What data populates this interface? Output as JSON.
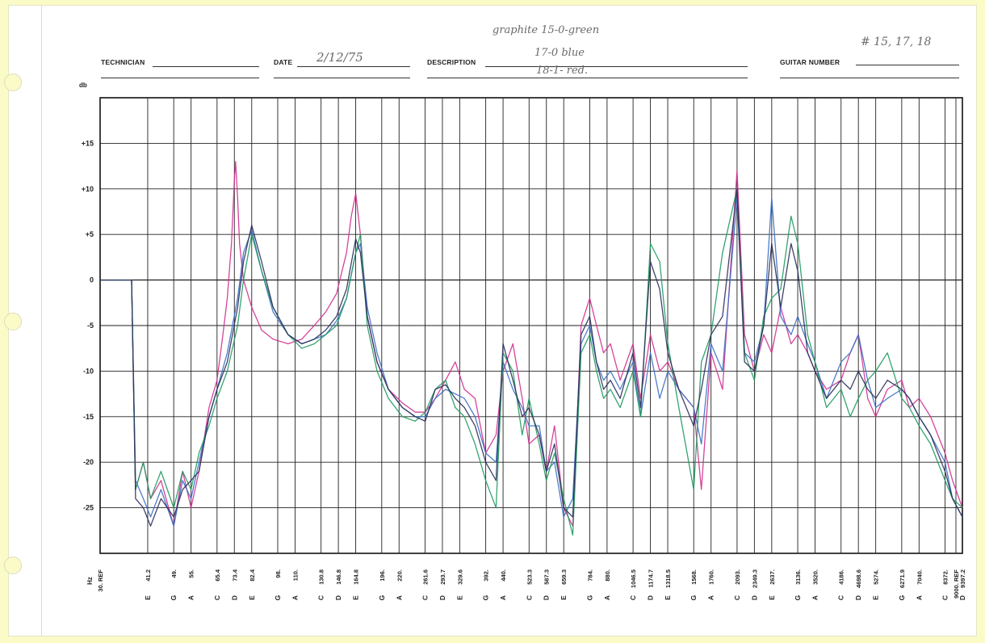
{
  "form": {
    "technician_label": "TECHNICIAN",
    "date_label": "DATE",
    "date_value": "2/12/75",
    "description_label": "DESCRIPTION",
    "description_lines": [
      "graphite 15-0-green",
      "17-0 blue",
      "18-1- red."
    ],
    "guitar_number_label": "GUITAR NUMBER",
    "guitar_number_value": "# 15, 17, 18"
  },
  "chart_data": {
    "type": "line",
    "ylabel": "db",
    "xlabel": "Hz",
    "ylim": [
      -30,
      20
    ],
    "yticks": [
      15,
      10,
      5,
      0,
      -5,
      -10,
      -15,
      -20,
      -25
    ],
    "ytick_labels": [
      "+15",
      "+10",
      "+5",
      "0",
      "-5",
      "-10",
      "-15",
      "-20",
      "-25"
    ],
    "x_scale": "log",
    "x_range_hz": [
      30,
      9397.2
    ],
    "x_ticks": [
      {
        "hz": 30,
        "freq": "30. REF",
        "note": ""
      },
      {
        "hz": 41.2,
        "freq": "41.2",
        "note": "E"
      },
      {
        "hz": 49,
        "freq": "49.",
        "note": "G"
      },
      {
        "hz": 55,
        "freq": "55.",
        "note": "A"
      },
      {
        "hz": 65.4,
        "freq": "65.4",
        "note": "C"
      },
      {
        "hz": 73.4,
        "freq": "73.4",
        "note": "D"
      },
      {
        "hz": 82.4,
        "freq": "82.4",
        "note": "E"
      },
      {
        "hz": 98,
        "freq": "98.",
        "note": "G"
      },
      {
        "hz": 110,
        "freq": "110.",
        "note": "A"
      },
      {
        "hz": 130.8,
        "freq": "130.8",
        "note": "C"
      },
      {
        "hz": 146.8,
        "freq": "146.8",
        "note": "D"
      },
      {
        "hz": 164.8,
        "freq": "164.8",
        "note": "E"
      },
      {
        "hz": 196,
        "freq": "196.",
        "note": "G"
      },
      {
        "hz": 220,
        "freq": "220.",
        "note": "A"
      },
      {
        "hz": 261.6,
        "freq": "261.6",
        "note": "C"
      },
      {
        "hz": 293.7,
        "freq": "293.7",
        "note": "D"
      },
      {
        "hz": 329.6,
        "freq": "329.6",
        "note": "E"
      },
      {
        "hz": 392,
        "freq": "392.",
        "note": "G"
      },
      {
        "hz": 440,
        "freq": "440.",
        "note": "A"
      },
      {
        "hz": 523.3,
        "freq": "523.3",
        "note": "C"
      },
      {
        "hz": 587.3,
        "freq": "587.3",
        "note": "D"
      },
      {
        "hz": 659.3,
        "freq": "659.3",
        "note": "E"
      },
      {
        "hz": 784,
        "freq": "784.",
        "note": "G"
      },
      {
        "hz": 880,
        "freq": "880.",
        "note": "A"
      },
      {
        "hz": 1046.5,
        "freq": "1046.5",
        "note": "C"
      },
      {
        "hz": 1174.7,
        "freq": "1174.7",
        "note": "D"
      },
      {
        "hz": 1318.5,
        "freq": "1318.5",
        "note": "E"
      },
      {
        "hz": 1568,
        "freq": "1568.",
        "note": "G"
      },
      {
        "hz": 1760,
        "freq": "1760.",
        "note": "A"
      },
      {
        "hz": 2093,
        "freq": "2093.",
        "note": "C"
      },
      {
        "hz": 2349.3,
        "freq": "2349.3",
        "note": "D"
      },
      {
        "hz": 2637,
        "freq": "2637.",
        "note": "E"
      },
      {
        "hz": 3136,
        "freq": "3136.",
        "note": "G"
      },
      {
        "hz": 3520,
        "freq": "3520.",
        "note": "A"
      },
      {
        "hz": 4186,
        "freq": "4186.",
        "note": "C"
      },
      {
        "hz": 4698.6,
        "freq": "4698.6",
        "note": "D"
      },
      {
        "hz": 5274,
        "freq": "5274.",
        "note": "E"
      },
      {
        "hz": 6271.9,
        "freq": "6271.9",
        "note": "G"
      },
      {
        "hz": 7040,
        "freq": "7040.",
        "note": "A"
      },
      {
        "hz": 8372,
        "freq": "8372.",
        "note": "C"
      },
      {
        "hz": 9000,
        "freq": "9000. REF",
        "note": ""
      },
      {
        "hz": 9397.2,
        "freq": "9397.2",
        "note": "D"
      }
    ],
    "grid": true,
    "series": [
      {
        "color": "#d0308f",
        "x": [
          30,
          37,
          38,
          40,
          42,
          45,
          49,
          52,
          55,
          58,
          62,
          65.4,
          68,
          70,
          72,
          73.4,
          74,
          75,
          76,
          78,
          82.4,
          88,
          95,
          105,
          115,
          125,
          135,
          145,
          155,
          160,
          164.8,
          170,
          178,
          190,
          205,
          225,
          245,
          262,
          280,
          300,
          320,
          340,
          365,
          392,
          420,
          440,
          470,
          500,
          523,
          560,
          587,
          620,
          659,
          700,
          740,
          784,
          820,
          860,
          900,
          960,
          1046,
          1100,
          1175,
          1250,
          1320,
          1420,
          1568,
          1650,
          1760,
          1900,
          2093,
          2200,
          2349,
          2500,
          2637,
          2800,
          3000,
          3136,
          3350,
          3520,
          3800,
          4186,
          4450,
          4698,
          5000,
          5274,
          5700,
          6272,
          6600,
          7040,
          7600,
          8372,
          8800,
          9397
        ],
        "y": [
          0,
          0,
          -23,
          -20,
          -24,
          -22,
          -27,
          -21,
          -25,
          -21,
          -14,
          -11,
          -6,
          -2,
          4,
          11,
          13,
          9,
          4,
          0,
          -3,
          -5.5,
          -6.5,
          -7,
          -6.5,
          -5,
          -3.5,
          -1.5,
          3,
          7,
          9.5,
          5,
          -4,
          -9,
          -12,
          -13.5,
          -14.5,
          -14.5,
          -13,
          -11,
          -9,
          -12,
          -13,
          -19,
          -17,
          -10,
          -7,
          -13,
          -18,
          -17,
          -21,
          -16,
          -25,
          -27,
          -5,
          -2,
          -5,
          -8,
          -7,
          -11,
          -7,
          -13,
          -6,
          -10,
          -9,
          -12,
          -14,
          -23,
          -8,
          -12,
          12,
          -6,
          -10,
          -6,
          -8,
          -3,
          -7,
          -6,
          -8,
          -10,
          -12,
          -11,
          -8,
          -6,
          -13,
          -15,
          -12,
          -11,
          -14,
          -13,
          -15,
          -19,
          -22,
          -25
        ]
      },
      {
        "color": "#3b6fc4",
        "x": [
          30,
          37,
          38,
          40,
          42,
          45,
          49,
          52,
          55,
          58,
          62,
          65.4,
          70,
          75,
          78,
          82.4,
          88,
          95,
          105,
          115,
          125,
          135,
          145,
          155,
          164.8,
          170,
          178,
          190,
          205,
          225,
          245,
          262,
          280,
          300,
          320,
          340,
          365,
          392,
          420,
          440,
          470,
          500,
          523,
          560,
          587,
          620,
          659,
          700,
          740,
          784,
          820,
          860,
          900,
          960,
          1046,
          1100,
          1175,
          1250,
          1320,
          1420,
          1568,
          1650,
          1760,
          1900,
          2093,
          2200,
          2349,
          2500,
          2637,
          2800,
          3000,
          3136,
          3350,
          3520,
          3800,
          4186,
          4450,
          4698,
          5000,
          5274,
          5700,
          6272,
          6600,
          7040,
          7600,
          8372,
          8800,
          9397
        ],
        "y": [
          0,
          0,
          -22,
          -24,
          -26,
          -23,
          -27,
          -22,
          -24,
          -20,
          -15,
          -12,
          -8,
          -2,
          3,
          5.5,
          1,
          -3.5,
          -6,
          -7,
          -6.5,
          -6,
          -4.5,
          -2,
          3,
          4,
          -3,
          -8,
          -12,
          -14,
          -15,
          -15,
          -13,
          -12,
          -12.5,
          -13,
          -15,
          -19,
          -20,
          -9,
          -12,
          -14,
          -16,
          -16,
          -21,
          -20,
          -26,
          -24,
          -7,
          -5,
          -9,
          -11,
          -10,
          -12,
          -9,
          -15,
          -8,
          -13,
          -10,
          -12,
          -14,
          -18,
          -7,
          -10,
          9,
          -8,
          -9,
          -5,
          9,
          -4,
          -6,
          -4,
          -7,
          -9,
          -13,
          -9,
          -8,
          -6,
          -11,
          -14,
          -13,
          -12,
          -13,
          -15,
          -17,
          -20,
          -24,
          -26
        ]
      },
      {
        "color": "#1f9a60",
        "x": [
          30,
          37,
          38,
          40,
          42,
          45,
          49,
          52,
          55,
          58,
          62,
          65.4,
          70,
          75,
          78,
          82.4,
          88,
          95,
          105,
          115,
          125,
          135,
          145,
          155,
          164.8,
          170,
          178,
          190,
          205,
          225,
          245,
          262,
          280,
          300,
          320,
          340,
          365,
          392,
          420,
          440,
          470,
          500,
          523,
          560,
          587,
          620,
          659,
          700,
          740,
          784,
          820,
          860,
          900,
          960,
          1046,
          1100,
          1175,
          1250,
          1320,
          1420,
          1568,
          1650,
          1760,
          1900,
          2093,
          2200,
          2349,
          2500,
          2637,
          2800,
          3000,
          3136,
          3350,
          3520,
          3800,
          4186,
          4450,
          4698,
          5000,
          5274,
          5700,
          6272,
          6600,
          7040,
          7600,
          8372,
          8800,
          9397
        ],
        "y": [
          0,
          0,
          -23,
          -20,
          -24,
          -21,
          -25,
          -21,
          -23,
          -19,
          -16,
          -13,
          -10,
          -5,
          0,
          5,
          1,
          -3,
          -6,
          -7.5,
          -7,
          -6,
          -5,
          -2,
          3,
          5,
          -5,
          -10,
          -13,
          -15,
          -15.5,
          -14.5,
          -12,
          -11,
          -14,
          -15,
          -18,
          -22,
          -25,
          -8,
          -10,
          -17,
          -13,
          -18,
          -22,
          -19,
          -24,
          -28,
          -8,
          -6,
          -10,
          -13,
          -12,
          -14,
          -10,
          -15,
          4,
          2,
          -7,
          -14,
          -23,
          -9,
          -6,
          3,
          10,
          -8,
          -11,
          -4,
          -2,
          -1,
          7,
          4,
          -6,
          -9,
          -14,
          -12,
          -15,
          -13,
          -11,
          -10,
          -8,
          -13,
          -14,
          -16,
          -18,
          -22,
          -24,
          -25
        ]
      },
      {
        "color": "#2a2f5a",
        "x": [
          30,
          37,
          38,
          40,
          42,
          45,
          49,
          52,
          55,
          58,
          62,
          65.4,
          70,
          75,
          78,
          82.4,
          88,
          95,
          105,
          115,
          125,
          135,
          145,
          155,
          164.8,
          170,
          178,
          190,
          205,
          225,
          245,
          262,
          280,
          300,
          320,
          340,
          365,
          392,
          420,
          440,
          470,
          500,
          523,
          560,
          587,
          620,
          659,
          700,
          740,
          784,
          820,
          860,
          900,
          960,
          1046,
          1100,
          1175,
          1250,
          1320,
          1420,
          1568,
          1650,
          1760,
          1900,
          2093,
          2200,
          2349,
          2500,
          2637,
          2800,
          3000,
          3136,
          3350,
          3520,
          3800,
          4186,
          4450,
          4698,
          5000,
          5274,
          5700,
          6272,
          6600,
          7040,
          7600,
          8372,
          8800,
          9397
        ],
        "y": [
          0,
          0,
          -24,
          -25,
          -27,
          -24,
          -26,
          -23,
          -22,
          -21,
          -15,
          -12,
          -9,
          -3,
          2,
          6,
          2,
          -3,
          -6,
          -7,
          -6.5,
          -5.5,
          -4,
          -1,
          4.5,
          3,
          -4,
          -9,
          -12,
          -14,
          -15,
          -15.5,
          -12,
          -11.5,
          -13,
          -14,
          -16,
          -20,
          -22,
          -7,
          -11,
          -15,
          -14,
          -17,
          -21,
          -18,
          -25,
          -26,
          -6,
          -4,
          -9,
          -12,
          -11,
          -13,
          -8,
          -14,
          2,
          -1,
          -8,
          -12,
          -16,
          -12,
          -6,
          -4,
          10,
          -9,
          -10,
          -5,
          4,
          -3,
          4,
          1,
          -8,
          -10,
          -13,
          -11,
          -12,
          -10,
          -12,
          -13,
          -11,
          -12,
          -13,
          -15,
          -17,
          -21,
          -24,
          -26
        ]
      }
    ]
  }
}
